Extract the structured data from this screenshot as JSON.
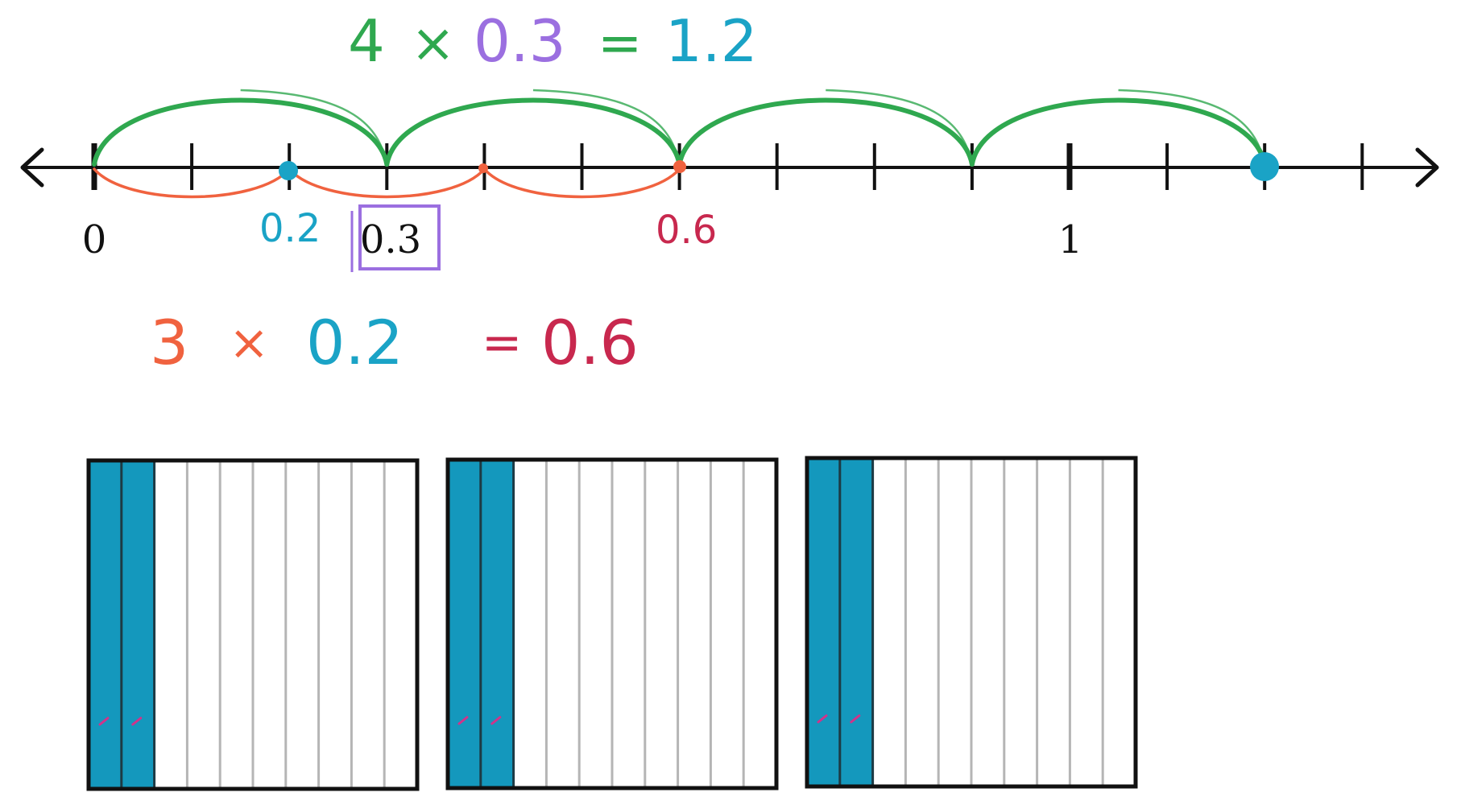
{
  "number_line": {
    "label_0": "0",
    "label_03": "0.3",
    "label_1": "1",
    "tick_count": 14,
    "tick_step": 0.1,
    "major_ticks": [
      "0",
      "1"
    ]
  },
  "equation_top": {
    "factor": "4",
    "times": "×",
    "decimal": "0.3",
    "equals": "=",
    "product": "1.2"
  },
  "equation_bottom": {
    "factor": "3",
    "times": "×",
    "decimal": "0.2",
    "equals": "=",
    "product": "0.6"
  },
  "annotations": {
    "point_02": "0.2",
    "point_06": "0.6"
  },
  "jumps": {
    "green_start": 0,
    "green_step": 0.3,
    "green_count": 4,
    "orange_start": 0,
    "orange_step": 0.2,
    "orange_count": 3
  },
  "grids": {
    "count": 3,
    "columns_per_grid": 10,
    "shaded_columns": 2
  },
  "colors": {
    "green": "#2fa84f",
    "purple": "#9b6fe0",
    "teal": "#1aa3c6",
    "orange": "#f0623f",
    "magenta": "#c8284e",
    "shade": "#1498bd",
    "grid_line": "#b5b5b5",
    "black": "#111111"
  }
}
